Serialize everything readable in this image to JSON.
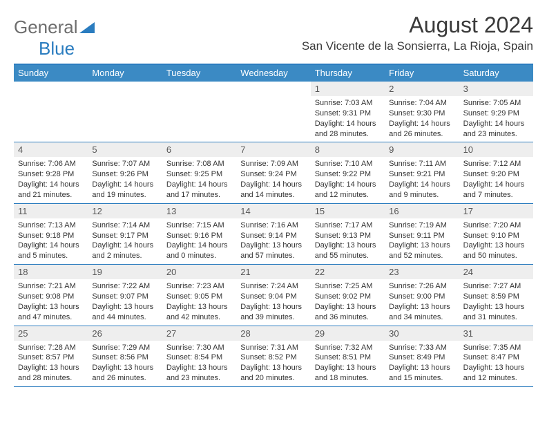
{
  "logo": {
    "text1": "General",
    "text2": "Blue"
  },
  "title": "August 2024",
  "subtitle": "San Vicente de la Sonsierra, La Rioja, Spain",
  "colors": {
    "header_bar": "#3b8ac4",
    "rule": "#2a7cbf",
    "daynum_bg": "#eeeeee",
    "text": "#333333"
  },
  "weekdays": [
    "Sunday",
    "Monday",
    "Tuesday",
    "Wednesday",
    "Thursday",
    "Friday",
    "Saturday"
  ],
  "weeks": [
    [
      null,
      null,
      null,
      null,
      {
        "n": "1",
        "sunrise": "7:03 AM",
        "sunset": "9:31 PM",
        "daylight": "14 hours and 28 minutes."
      },
      {
        "n": "2",
        "sunrise": "7:04 AM",
        "sunset": "9:30 PM",
        "daylight": "14 hours and 26 minutes."
      },
      {
        "n": "3",
        "sunrise": "7:05 AM",
        "sunset": "9:29 PM",
        "daylight": "14 hours and 23 minutes."
      }
    ],
    [
      {
        "n": "4",
        "sunrise": "7:06 AM",
        "sunset": "9:28 PM",
        "daylight": "14 hours and 21 minutes."
      },
      {
        "n": "5",
        "sunrise": "7:07 AM",
        "sunset": "9:26 PM",
        "daylight": "14 hours and 19 minutes."
      },
      {
        "n": "6",
        "sunrise": "7:08 AM",
        "sunset": "9:25 PM",
        "daylight": "14 hours and 17 minutes."
      },
      {
        "n": "7",
        "sunrise": "7:09 AM",
        "sunset": "9:24 PM",
        "daylight": "14 hours and 14 minutes."
      },
      {
        "n": "8",
        "sunrise": "7:10 AM",
        "sunset": "9:22 PM",
        "daylight": "14 hours and 12 minutes."
      },
      {
        "n": "9",
        "sunrise": "7:11 AM",
        "sunset": "9:21 PM",
        "daylight": "14 hours and 9 minutes."
      },
      {
        "n": "10",
        "sunrise": "7:12 AM",
        "sunset": "9:20 PM",
        "daylight": "14 hours and 7 minutes."
      }
    ],
    [
      {
        "n": "11",
        "sunrise": "7:13 AM",
        "sunset": "9:18 PM",
        "daylight": "14 hours and 5 minutes."
      },
      {
        "n": "12",
        "sunrise": "7:14 AM",
        "sunset": "9:17 PM",
        "daylight": "14 hours and 2 minutes."
      },
      {
        "n": "13",
        "sunrise": "7:15 AM",
        "sunset": "9:16 PM",
        "daylight": "14 hours and 0 minutes."
      },
      {
        "n": "14",
        "sunrise": "7:16 AM",
        "sunset": "9:14 PM",
        "daylight": "13 hours and 57 minutes."
      },
      {
        "n": "15",
        "sunrise": "7:17 AM",
        "sunset": "9:13 PM",
        "daylight": "13 hours and 55 minutes."
      },
      {
        "n": "16",
        "sunrise": "7:19 AM",
        "sunset": "9:11 PM",
        "daylight": "13 hours and 52 minutes."
      },
      {
        "n": "17",
        "sunrise": "7:20 AM",
        "sunset": "9:10 PM",
        "daylight": "13 hours and 50 minutes."
      }
    ],
    [
      {
        "n": "18",
        "sunrise": "7:21 AM",
        "sunset": "9:08 PM",
        "daylight": "13 hours and 47 minutes."
      },
      {
        "n": "19",
        "sunrise": "7:22 AM",
        "sunset": "9:07 PM",
        "daylight": "13 hours and 44 minutes."
      },
      {
        "n": "20",
        "sunrise": "7:23 AM",
        "sunset": "9:05 PM",
        "daylight": "13 hours and 42 minutes."
      },
      {
        "n": "21",
        "sunrise": "7:24 AM",
        "sunset": "9:04 PM",
        "daylight": "13 hours and 39 minutes."
      },
      {
        "n": "22",
        "sunrise": "7:25 AM",
        "sunset": "9:02 PM",
        "daylight": "13 hours and 36 minutes."
      },
      {
        "n": "23",
        "sunrise": "7:26 AM",
        "sunset": "9:00 PM",
        "daylight": "13 hours and 34 minutes."
      },
      {
        "n": "24",
        "sunrise": "7:27 AM",
        "sunset": "8:59 PM",
        "daylight": "13 hours and 31 minutes."
      }
    ],
    [
      {
        "n": "25",
        "sunrise": "7:28 AM",
        "sunset": "8:57 PM",
        "daylight": "13 hours and 28 minutes."
      },
      {
        "n": "26",
        "sunrise": "7:29 AM",
        "sunset": "8:56 PM",
        "daylight": "13 hours and 26 minutes."
      },
      {
        "n": "27",
        "sunrise": "7:30 AM",
        "sunset": "8:54 PM",
        "daylight": "13 hours and 23 minutes."
      },
      {
        "n": "28",
        "sunrise": "7:31 AM",
        "sunset": "8:52 PM",
        "daylight": "13 hours and 20 minutes."
      },
      {
        "n": "29",
        "sunrise": "7:32 AM",
        "sunset": "8:51 PM",
        "daylight": "13 hours and 18 minutes."
      },
      {
        "n": "30",
        "sunrise": "7:33 AM",
        "sunset": "8:49 PM",
        "daylight": "13 hours and 15 minutes."
      },
      {
        "n": "31",
        "sunrise": "7:35 AM",
        "sunset": "8:47 PM",
        "daylight": "13 hours and 12 minutes."
      }
    ]
  ]
}
